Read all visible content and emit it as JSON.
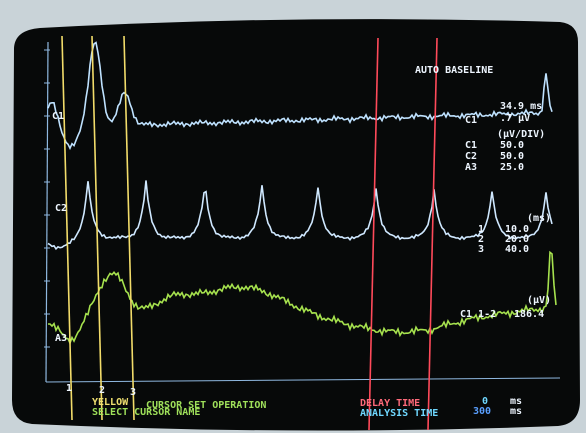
{
  "screen": {
    "mode": "AUTO BASELINE",
    "trace_labels": [
      "C1",
      "C2",
      "A3"
    ],
    "cursor_labels": [
      "1",
      "2",
      "3"
    ],
    "readout": {
      "channel": "C1",
      "time": "34.9 ms",
      "amplitude": ".7 µV"
    },
    "scale": {
      "unit": "(µV/DIV)",
      "rows": [
        [
          "C1",
          "50.0"
        ],
        [
          "C2",
          "50.0"
        ],
        [
          "A3",
          "25.0"
        ]
      ]
    },
    "cursors": {
      "unit": "(ms)",
      "rows": [
        [
          "1",
          "10.0"
        ],
        [
          "2",
          "20.0"
        ],
        [
          "3",
          "40.0"
        ]
      ]
    },
    "peak": {
      "unit": "(µV)",
      "label": "C1 1-2",
      "value": "186.4"
    },
    "footer": {
      "line1": [
        "YELLOW",
        "CURSOR SET OPERATION"
      ],
      "line2": "SELECT CURSOR NAME",
      "delay": [
        "DELAY TIME",
        "0",
        "ms"
      ],
      "analysis": [
        "ANALYSIS TIME",
        "300",
        "ms"
      ]
    }
  }
}
